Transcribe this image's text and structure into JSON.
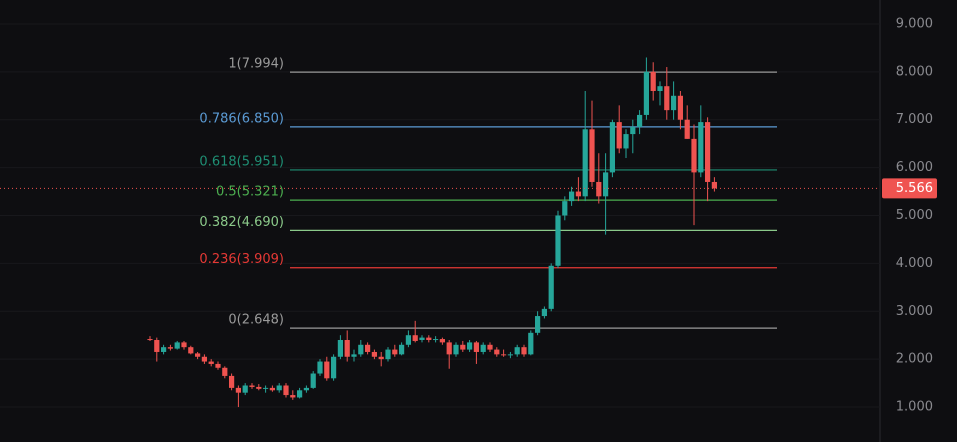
{
  "chart_data": {
    "type": "candlestick",
    "up_color": "#26a69a",
    "down_color": "#ef5350",
    "open": [
      2.42,
      2.4,
      2.15,
      2.25,
      2.22,
      2.35,
      2.25,
      2.12,
      2.05,
      1.95,
      1.9,
      1.82,
      1.65,
      1.4,
      1.3,
      1.45,
      1.42,
      1.38,
      1.4,
      1.35,
      1.45,
      1.25,
      1.2,
      1.35,
      1.4,
      1.7,
      1.95,
      1.6,
      2.05,
      2.4,
      2.05,
      2.1,
      2.3,
      2.15,
      2.05,
      2.0,
      2.2,
      2.1,
      2.3,
      2.5,
      2.4,
      2.45,
      2.4,
      2.42,
      2.35,
      2.1,
      2.3,
      2.2,
      2.35,
      2.15,
      2.3,
      2.2,
      2.1,
      2.08,
      2.1,
      2.25,
      2.1,
      2.55,
      2.9,
      3.05,
      3.95,
      5.0,
      5.3,
      5.5,
      5.4,
      6.8,
      5.7,
      5.4,
      5.9,
      6.95,
      6.4,
      6.7,
      6.85,
      7.1,
      8.0,
      7.6,
      7.7,
      7.2,
      7.5,
      7.0,
      6.6,
      5.9,
      6.95,
      5.7
    ],
    "high": [
      2.48,
      2.45,
      2.3,
      2.3,
      2.38,
      2.38,
      2.28,
      2.15,
      2.1,
      2.0,
      1.95,
      1.85,
      1.7,
      1.45,
      1.5,
      1.5,
      1.48,
      1.45,
      1.45,
      1.5,
      1.5,
      1.35,
      1.4,
      1.45,
      1.75,
      2.0,
      2.05,
      2.1,
      2.5,
      2.6,
      2.2,
      2.4,
      2.35,
      2.2,
      2.15,
      2.25,
      2.3,
      2.35,
      2.6,
      2.8,
      2.5,
      2.5,
      2.48,
      2.45,
      2.4,
      2.35,
      2.38,
      2.4,
      2.38,
      2.35,
      2.35,
      2.25,
      2.2,
      2.15,
      2.3,
      2.3,
      2.6,
      3.0,
      3.1,
      4.0,
      5.1,
      5.4,
      5.6,
      5.8,
      7.6,
      7.4,
      6.3,
      6.3,
      7.0,
      7.3,
      6.8,
      7.0,
      7.2,
      8.3,
      8.2,
      7.8,
      8.1,
      7.8,
      7.6,
      7.3,
      6.9,
      7.3,
      7.05,
      5.8
    ],
    "low": [
      2.38,
      1.95,
      2.1,
      2.18,
      2.2,
      2.2,
      2.1,
      2.0,
      1.9,
      1.85,
      1.78,
      1.6,
      1.35,
      1.0,
      1.25,
      1.38,
      1.35,
      1.3,
      1.32,
      1.3,
      1.2,
      1.15,
      1.18,
      1.3,
      1.38,
      1.65,
      1.55,
      1.55,
      2.0,
      1.95,
      1.95,
      2.05,
      2.1,
      2.0,
      1.85,
      1.95,
      2.05,
      2.08,
      2.25,
      2.35,
      2.35,
      2.35,
      2.35,
      2.3,
      1.8,
      2.05,
      2.15,
      2.15,
      1.9,
      2.1,
      2.15,
      2.05,
      2.05,
      2.02,
      2.05,
      2.05,
      2.08,
      2.5,
      2.85,
      3.0,
      3.9,
      4.9,
      5.2,
      5.3,
      5.3,
      5.6,
      5.25,
      4.6,
      5.8,
      6.3,
      6.2,
      6.3,
      6.7,
      7.0,
      7.4,
      7.3,
      7.0,
      7.0,
      6.8,
      6.6,
      4.8,
      5.8,
      5.3,
      5.5
    ],
    "close": [
      2.4,
      2.15,
      2.25,
      2.22,
      2.35,
      2.25,
      2.12,
      2.05,
      1.95,
      1.9,
      1.82,
      1.65,
      1.4,
      1.3,
      1.45,
      1.42,
      1.38,
      1.4,
      1.35,
      1.45,
      1.25,
      1.2,
      1.35,
      1.4,
      1.7,
      1.95,
      1.6,
      2.05,
      2.4,
      2.05,
      2.1,
      2.3,
      2.15,
      2.05,
      2.0,
      2.2,
      2.1,
      2.3,
      2.5,
      2.38,
      2.45,
      2.4,
      2.42,
      2.35,
      2.1,
      2.3,
      2.2,
      2.35,
      2.15,
      2.3,
      2.2,
      2.1,
      2.08,
      2.1,
      2.25,
      2.1,
      2.55,
      2.9,
      3.05,
      3.95,
      5.0,
      5.3,
      5.5,
      5.4,
      6.8,
      5.7,
      5.4,
      5.9,
      6.95,
      6.4,
      6.7,
      6.85,
      7.1,
      8.0,
      7.6,
      7.7,
      7.2,
      7.5,
      7.0,
      6.6,
      5.9,
      6.95,
      5.7,
      5.566
    ],
    "fib_levels": [
      {
        "label": "1(7.994)",
        "value": 7.994,
        "color": "#9a9a9a"
      },
      {
        "label": "0.786(6.850)",
        "value": 6.85,
        "color": "#5b9bd5"
      },
      {
        "label": "0.618(5.951)",
        "value": 5.951,
        "color": "#1f8f74"
      },
      {
        "label": "0.5(5.321)",
        "value": 5.321,
        "color": "#4caf50"
      },
      {
        "label": "0.382(4.690)",
        "value": 4.69,
        "color": "#8bc98a"
      },
      {
        "label": "0.236(3.909)",
        "value": 3.909,
        "color": "#e53935"
      },
      {
        "label": "0(2.648)",
        "value": 2.648,
        "color": "#9a9a9a"
      }
    ],
    "last_price": 5.566,
    "ylim": [
      0.27,
      9.5
    ],
    "yticks": [
      {
        "value": 1,
        "label": "1.000"
      },
      {
        "value": 2,
        "label": "2.000"
      },
      {
        "value": 3,
        "label": "3.000"
      },
      {
        "value": 4,
        "label": "4.000"
      },
      {
        "value": 5,
        "label": "5.000"
      },
      {
        "value": 6,
        "label": "6.000"
      },
      {
        "value": 7,
        "label": "7.000"
      },
      {
        "value": 8,
        "label": "8.000"
      },
      {
        "value": 9,
        "label": "9.000"
      }
    ],
    "grid": true
  }
}
